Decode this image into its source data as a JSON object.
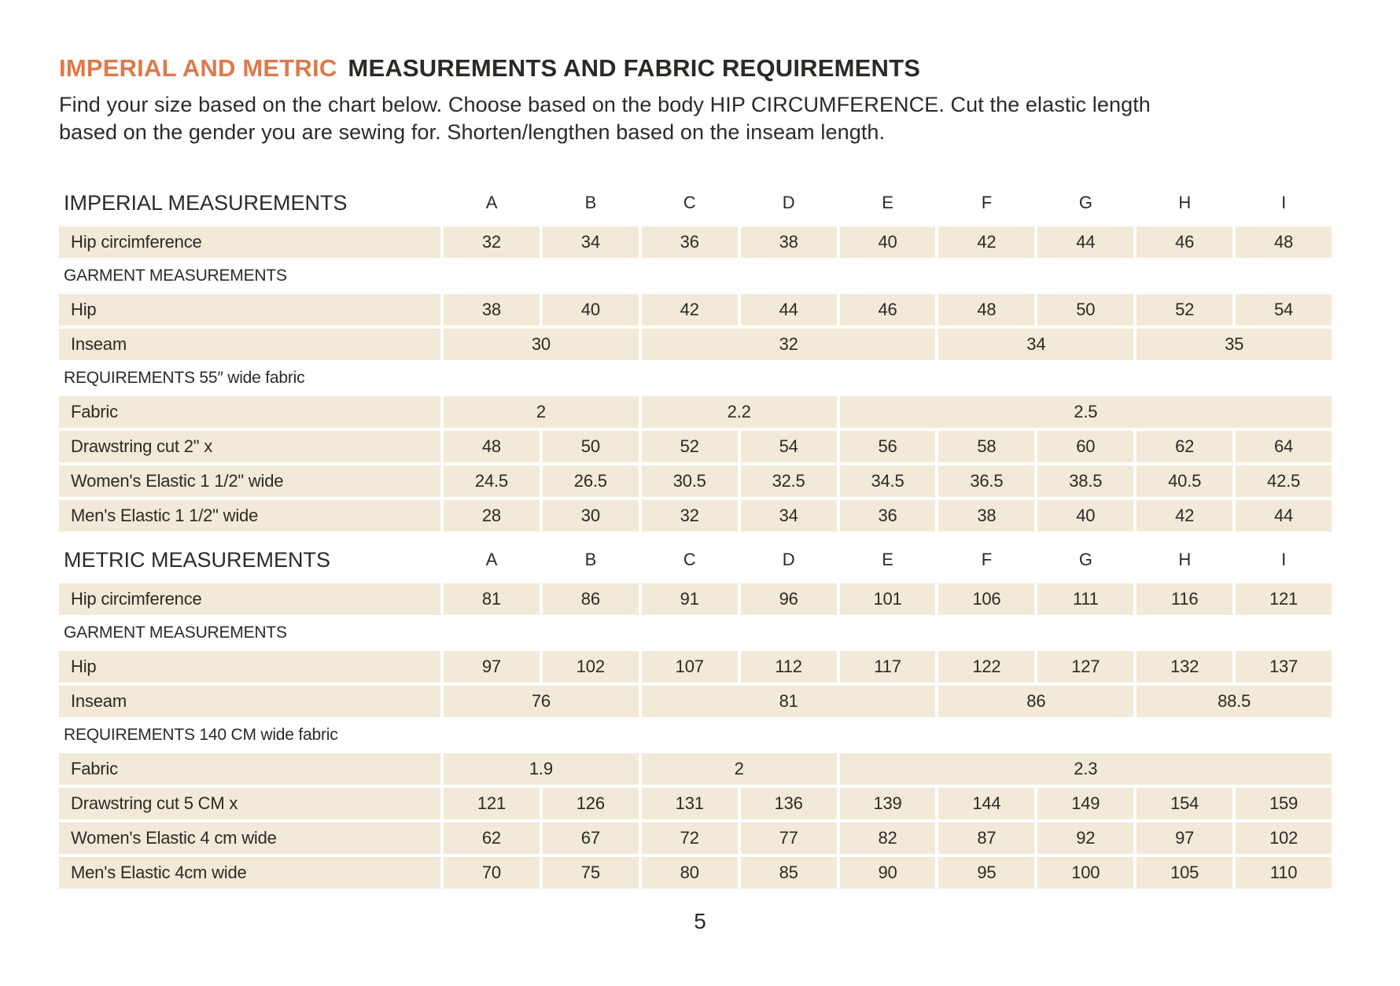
{
  "page": {
    "title": {
      "accent": "IMPERIAL AND METRIC",
      "rest": "MEASUREMENTS AND FABRIC REQUIREMENTS"
    },
    "intro": "Find your size based on the chart below. Choose based on the body HIP CIRCUMFERENCE. Cut the elastic length based on the gender you are sewing for. Shorten/lengthen based on the inseam length.",
    "page_number": "5"
  },
  "colors": {
    "accent": "#dd7a4a",
    "cell_bg": "#f2e9d8",
    "text": "#2b2a26"
  },
  "table": {
    "size_columns": [
      "A",
      "B",
      "C",
      "D",
      "E",
      "F",
      "G",
      "H",
      "I"
    ],
    "rows": [
      {
        "kind": "columns",
        "label": "IMPERIAL MEASUREMENTS"
      },
      {
        "kind": "values",
        "label": "Hip circimference",
        "values": [
          "32",
          "34",
          "36",
          "38",
          "40",
          "42",
          "44",
          "46",
          "48"
        ]
      },
      {
        "kind": "section",
        "label": "GARMENT MEASUREMENTS"
      },
      {
        "kind": "values",
        "label": "Hip",
        "values": [
          "38",
          "40",
          "42",
          "44",
          "46",
          "48",
          "50",
          "52",
          "54"
        ]
      },
      {
        "kind": "merged",
        "label": "Inseam",
        "cells": [
          {
            "v": "30",
            "span": 2
          },
          {
            "v": "32",
            "span": 3
          },
          {
            "v": "34",
            "span": 2
          },
          {
            "v": "35",
            "span": 2
          }
        ]
      },
      {
        "kind": "section",
        "label": "REQUIREMENTS 55″ wide fabric"
      },
      {
        "kind": "merged",
        "label": "Fabric",
        "cells": [
          {
            "v": "2",
            "span": 2
          },
          {
            "v": "2.2",
            "span": 2
          },
          {
            "v": "2.5",
            "span": 5
          }
        ]
      },
      {
        "kind": "values",
        "label": "Drawstring cut 2\" x",
        "values": [
          "48",
          "50",
          "52",
          "54",
          "56",
          "58",
          "60",
          "62",
          "64"
        ]
      },
      {
        "kind": "values",
        "label": "Women's Elastic 1 1/2\" wide",
        "values": [
          "24.5",
          "26.5",
          "30.5",
          "32.5",
          "34.5",
          "36.5",
          "38.5",
          "40.5",
          "42.5"
        ]
      },
      {
        "kind": "values",
        "label": "Men's Elastic 1 1/2\" wide",
        "values": [
          "28",
          "30",
          "32",
          "34",
          "36",
          "38",
          "40",
          "42",
          "44"
        ]
      },
      {
        "kind": "columns",
        "label": "METRIC MEASUREMENTS"
      },
      {
        "kind": "values",
        "label": "Hip circimference",
        "values": [
          "81",
          "86",
          "91",
          "96",
          "101",
          "106",
          "111",
          "116",
          "121"
        ]
      },
      {
        "kind": "section",
        "label": "GARMENT MEASUREMENTS"
      },
      {
        "kind": "values",
        "label": "Hip",
        "values": [
          "97",
          "102",
          "107",
          "112",
          "117",
          "122",
          "127",
          "132",
          "137"
        ]
      },
      {
        "kind": "merged",
        "label": "Inseam",
        "cells": [
          {
            "v": "76",
            "span": 2
          },
          {
            "v": "81",
            "span": 3
          },
          {
            "v": "86",
            "span": 2
          },
          {
            "v": "88.5",
            "span": 2
          }
        ]
      },
      {
        "kind": "section",
        "label": "REQUIREMENTS 140 CM wide fabric"
      },
      {
        "kind": "merged",
        "label": "Fabric",
        "cells": [
          {
            "v": "1.9",
            "span": 2
          },
          {
            "v": "2",
            "span": 2
          },
          {
            "v": "2.3",
            "span": 5
          }
        ]
      },
      {
        "kind": "values",
        "label": "Drawstring cut 5 CM x",
        "values": [
          "121",
          "126",
          "131",
          "136",
          "139",
          "144",
          "149",
          "154",
          "159"
        ]
      },
      {
        "kind": "values",
        "label": "Women's Elastic 4 cm wide",
        "values": [
          "62",
          "67",
          "72",
          "77",
          "82",
          "87",
          "92",
          "97",
          "102"
        ]
      },
      {
        "kind": "values",
        "label": "Men's Elastic 4cm wide",
        "values": [
          "70",
          "75",
          "80",
          "85",
          "90",
          "95",
          "100",
          "105",
          "110"
        ]
      }
    ]
  }
}
